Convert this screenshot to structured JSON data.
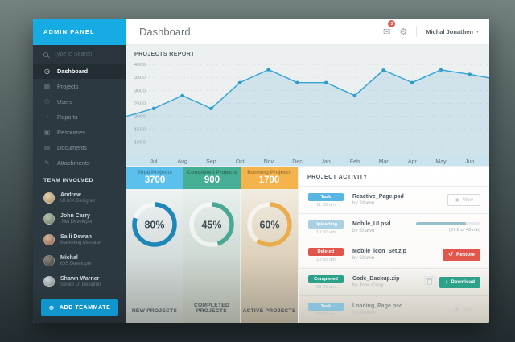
{
  "brand": "ADMIN PANEL",
  "topbar": {
    "title": "Dashboard",
    "mail_badge": "3",
    "user": "Michal Jonathen"
  },
  "sidebar": {
    "search_placeholder": "Type to Search",
    "nav": [
      {
        "label": "Dashboard",
        "icon": "dashboard",
        "active": true
      },
      {
        "label": "Projects",
        "icon": "projects",
        "active": false
      },
      {
        "label": "Users",
        "icon": "users",
        "active": false
      },
      {
        "label": "Reports",
        "icon": "reports",
        "active": false
      },
      {
        "label": "Resources",
        "icon": "resources",
        "active": false
      },
      {
        "label": "Documents",
        "icon": "documents",
        "active": false
      },
      {
        "label": "Attachments",
        "icon": "attachments",
        "active": false
      }
    ],
    "team_header": "TEAM INVOLVED",
    "team": [
      {
        "name": "Andrew",
        "role": "UI /UX Designer"
      },
      {
        "name": "John Carry",
        "role": ".Net Developer"
      },
      {
        "name": "Salli Dewan",
        "role": "Marketing Manager"
      },
      {
        "name": "Michal",
        "role": "iOS Developer"
      },
      {
        "name": "Shawn Warner",
        "role": "Senior UI Designer"
      }
    ],
    "add_teammate": "ADD TEAMMATE"
  },
  "chart_data": [
    {
      "type": "line",
      "title": "PROJECTS REPORT",
      "categories": [
        "Jul",
        "Aug",
        "Sep",
        "Oct",
        "Nov",
        "Dec",
        "Jan",
        "Feb",
        "Mar",
        "Apr",
        "May",
        "Jun"
      ],
      "values": [
        2300,
        2800,
        2300,
        3300,
        3800,
        3300,
        3300,
        2800,
        3780,
        3300,
        3790,
        3620
      ],
      "edge_start": 2000,
      "edge_end": 3480,
      "yticks": [
        4000,
        3500,
        3000,
        2500,
        2000,
        1500,
        1000
      ],
      "ylim": [
        1000,
        4000
      ],
      "xlabel": "",
      "ylabel": "",
      "grid": true,
      "legend": false,
      "line_color": "#35a4d4",
      "band_color": "#c9e3ef"
    },
    {
      "type": "donut-gauges",
      "items": [
        {
          "label": "NEW PROJECTS",
          "percent": 80,
          "color": "#1e87b8"
        },
        {
          "label": "COMPLETED PROJECTS",
          "percent": 45,
          "color": "#49a893"
        },
        {
          "label": "ACTIVE PROJECTS",
          "percent": 60,
          "color": "#e9ad4d"
        }
      ]
    }
  ],
  "stats_cards": [
    {
      "title": "Total Projects",
      "value": "3700",
      "color": "#5cc0ec"
    },
    {
      "title": "Completed Projects",
      "value": "900",
      "color": "#46ae94"
    },
    {
      "title": "Running Projects",
      "value": "1700",
      "color": "#f4b34d"
    }
  ],
  "activity": {
    "header": "PROJECT ACTIVITY",
    "rows": [
      {
        "status": "Task",
        "status_type": "task",
        "time": "11:00 am",
        "file": "Reactive_Page.psd",
        "by": "by Shawn",
        "action": "view",
        "action_label": "View",
        "muted": false
      },
      {
        "status": "Uploading",
        "status_type": "uploading",
        "time": "10:00 am",
        "file": "Mobile_UI.psd",
        "by": "by Shawn",
        "action": "progress",
        "progress": 78,
        "progress_text": "(37.6 of 48 mb)",
        "muted": false
      },
      {
        "status": "Deleted",
        "status_type": "deleted",
        "time": "10:35 am",
        "file": "Mobile_icon_Set.zip",
        "by": "by Shawn",
        "action": "restore",
        "action_label": "Restore",
        "muted": false
      },
      {
        "status": "Completed",
        "status_type": "completed",
        "time": "09:05 am",
        "file": "Code_Backup.zip",
        "by": "by John Carry",
        "action": "download",
        "action_label": "Download",
        "muted": false
      },
      {
        "status": "Task",
        "status_type": "task",
        "time": "08:35 am",
        "file": "Loading_Page.psd",
        "by": "by Andrew",
        "action": "view",
        "action_label": "View",
        "muted": true
      }
    ]
  }
}
